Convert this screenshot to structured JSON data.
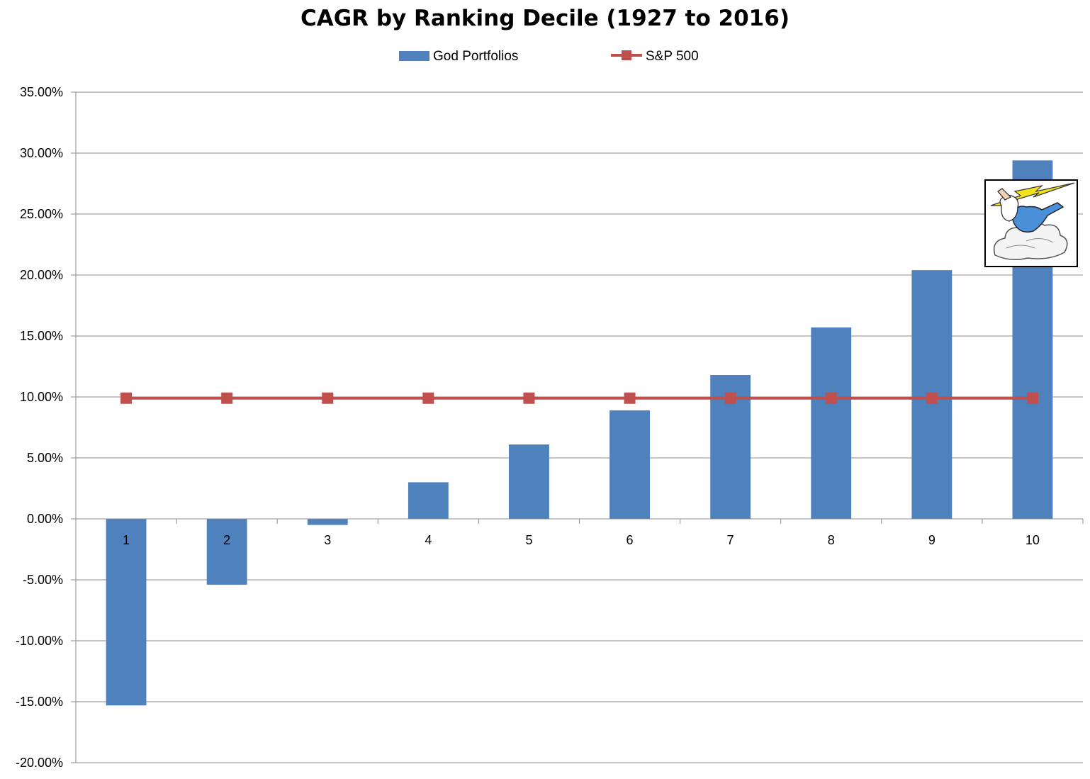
{
  "chart_data": {
    "type": "bar",
    "title": "CAGR by Ranking Decile (1927 to 2016)",
    "xlabel": "",
    "ylabel": "",
    "categories": [
      "1",
      "2",
      "3",
      "4",
      "5",
      "6",
      "7",
      "8",
      "9",
      "10"
    ],
    "series": [
      {
        "name": "God Portfolios",
        "type": "bar",
        "color": "#4F81BD",
        "values": [
          -15.3,
          -5.4,
          -0.5,
          3.0,
          6.1,
          8.9,
          11.8,
          15.7,
          20.4,
          29.4
        ]
      },
      {
        "name": "S&P 500",
        "type": "line",
        "marker": "square",
        "color": "#C0504D",
        "values": [
          9.9,
          9.9,
          9.9,
          9.9,
          9.9,
          9.9,
          9.9,
          9.9,
          9.9,
          9.9
        ]
      }
    ],
    "ylim": [
      -20,
      35
    ],
    "yticks": [
      35,
      30,
      25,
      20,
      15,
      10,
      5,
      0,
      -5,
      -10,
      -15,
      -20
    ],
    "ytick_labels": [
      "35.00%",
      "30.00%",
      "25.00%",
      "20.00%",
      "15.00%",
      "10.00%",
      "5.00%",
      "0.00%",
      "-5.00%",
      "-10.00%",
      "-15.00%",
      "-20.00%"
    ],
    "grid": true,
    "legend_position": "top-center",
    "image": {
      "icon": "zeus-lightning-icon"
    }
  }
}
